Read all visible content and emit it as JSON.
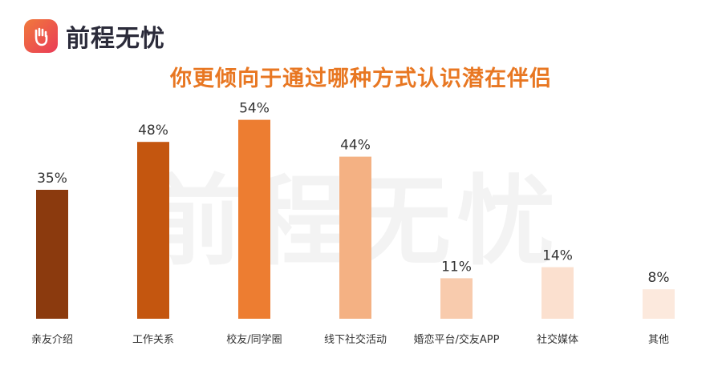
{
  "brand": {
    "name": "前程无忧",
    "logo_icon": "hand-icon"
  },
  "chart_data": {
    "type": "bar",
    "title": "你更倾向于通过哪种方式认识潜在伴侣",
    "categories": [
      "亲友介绍",
      "工作关系",
      "校友/同学圈",
      "线下社交活动",
      "婚恋平台/交友APP",
      "社交媒体",
      "其他"
    ],
    "values": [
      35,
      48,
      54,
      44,
      11,
      14,
      8
    ],
    "value_labels": [
      "35%",
      "48%",
      "54%",
      "44%",
      "11%",
      "14%",
      "8%"
    ],
    "colors": [
      "#8b3a0e",
      "#c4560f",
      "#ed7d31",
      "#f4b183",
      "#f8cbad",
      "#fbe0cf",
      "#fce9dd"
    ],
    "ylim": [
      0,
      60
    ],
    "xlabel": "",
    "ylabel": "",
    "grid": false,
    "legend": "none"
  }
}
